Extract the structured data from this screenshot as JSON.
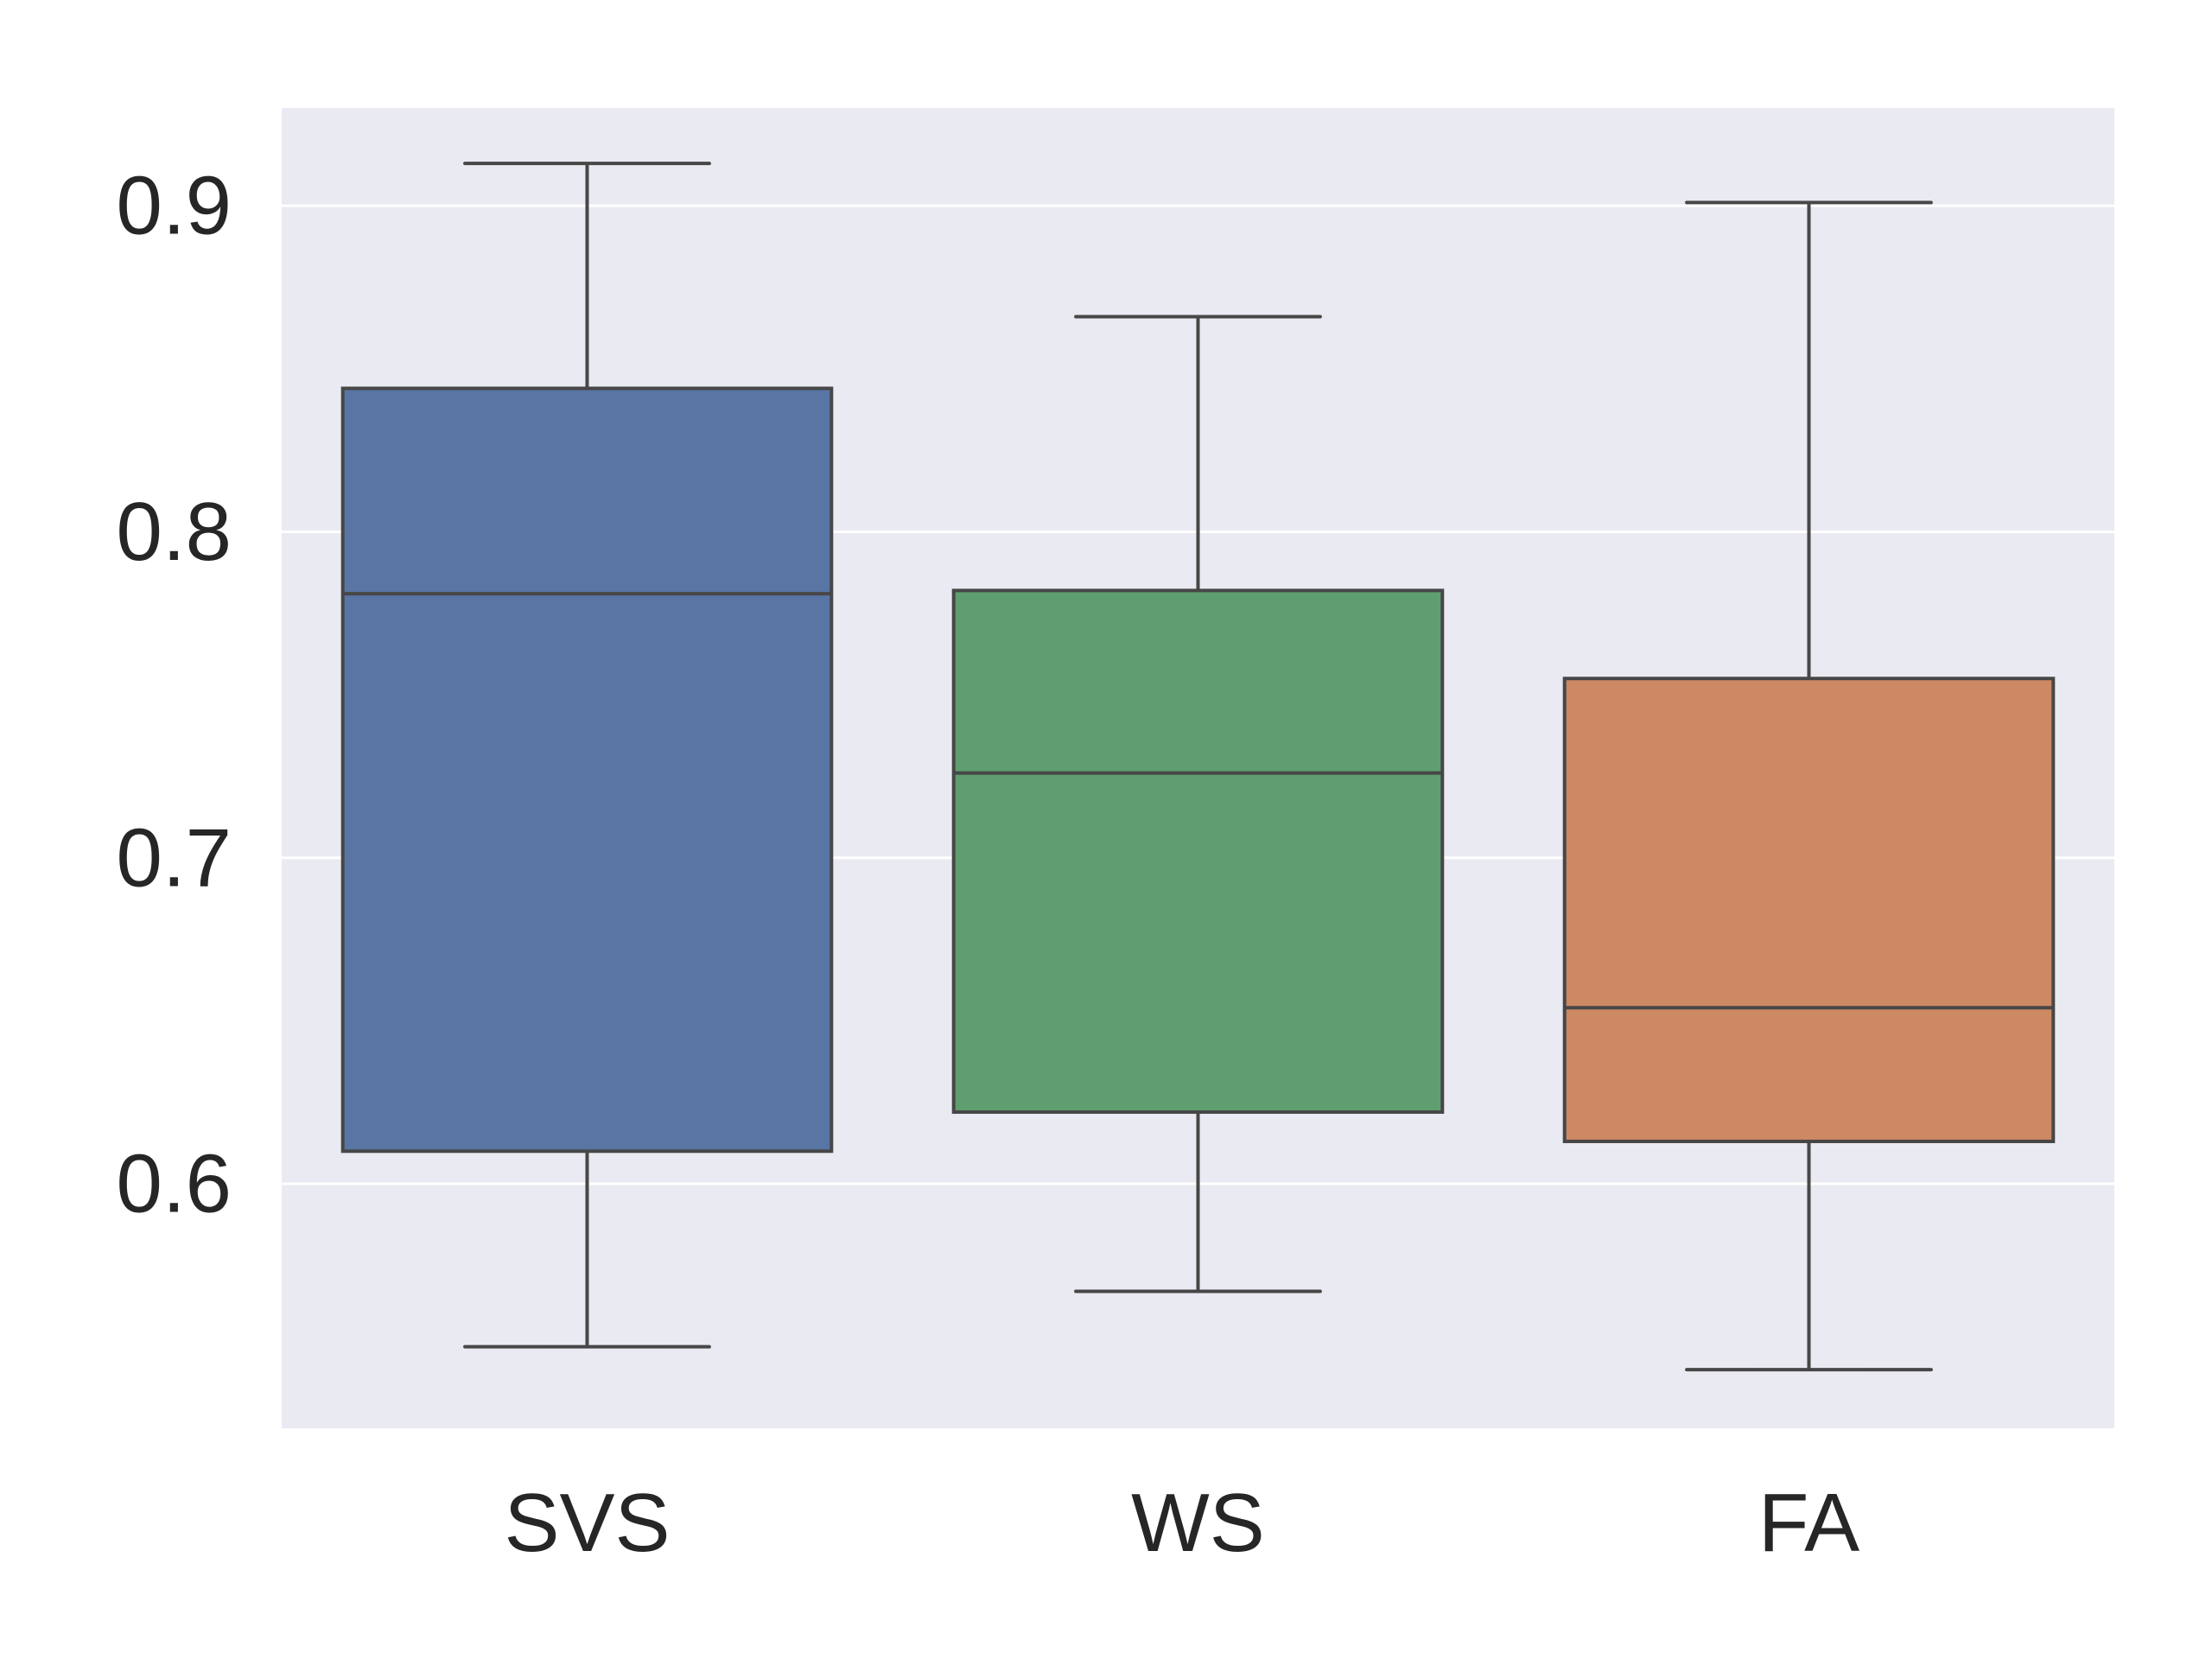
{
  "chart_data": {
    "type": "boxplot",
    "title": "",
    "xlabel": "",
    "ylabel": "",
    "categories": [
      "SVS",
      "WS",
      "FA"
    ],
    "colors": [
      "#5875a4",
      "#5f9e6e",
      "#cc8963"
    ],
    "ylim": [
      0.525,
      0.93
    ],
    "yticks": [
      0.6,
      0.7,
      0.8,
      0.9
    ],
    "ytick_labels": [
      "0.6",
      "0.7",
      "0.8",
      "0.9"
    ],
    "grid": true,
    "background": "#eaeaf2",
    "boxes": [
      {
        "category": "SVS",
        "whisker_low": 0.55,
        "q1": 0.61,
        "median": 0.781,
        "q3": 0.844,
        "whisker_high": 0.913
      },
      {
        "category": "WS",
        "whisker_low": 0.567,
        "q1": 0.622,
        "median": 0.726,
        "q3": 0.782,
        "whisker_high": 0.866
      },
      {
        "category": "FA",
        "whisker_low": 0.543,
        "q1": 0.613,
        "median": 0.654,
        "q3": 0.755,
        "whisker_high": 0.901
      }
    ]
  }
}
